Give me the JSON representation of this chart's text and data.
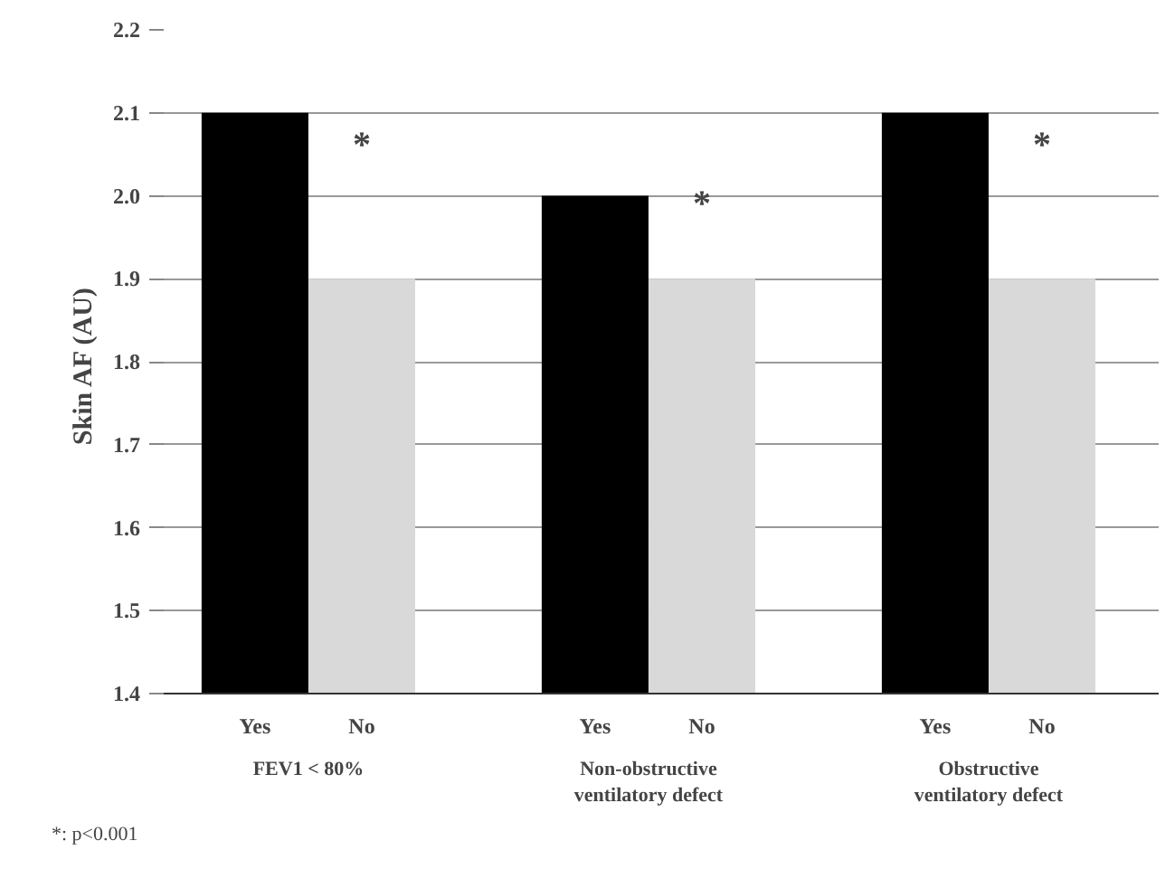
{
  "chart_data": {
    "type": "bar",
    "ylabel": "Skin  AF (AU)",
    "categories": [
      "FEV1 < 80%",
      "Non-obstructive ventilatory defect",
      "Obstructive ventilatory defect"
    ],
    "series": [
      {
        "name": "Yes",
        "color": "#000000",
        "values": [
          2.1,
          2.0,
          2.1
        ]
      },
      {
        "name": "No",
        "color": "#d9d9d9",
        "values": [
          1.9,
          1.9,
          1.9
        ]
      }
    ],
    "ylim": [
      1.4,
      2.2
    ],
    "yticks": [
      1.4,
      1.5,
      1.6,
      1.7,
      1.8,
      1.9,
      {
        "value": 2,
        "label": "2.0"
      },
      2.1,
      2.2
    ],
    "grid": "y",
    "annotations": [
      {
        "text": "*",
        "x": "FEV1 < 80%",
        "y": 2.06
      },
      {
        "text": "*",
        "x": "Non-obstructive ventilatory defect",
        "y": 1.99
      },
      {
        "text": "*",
        "x": "Obstructive ventilatory defect",
        "y": 2.06
      },
      "*: p<0.001"
    ]
  }
}
